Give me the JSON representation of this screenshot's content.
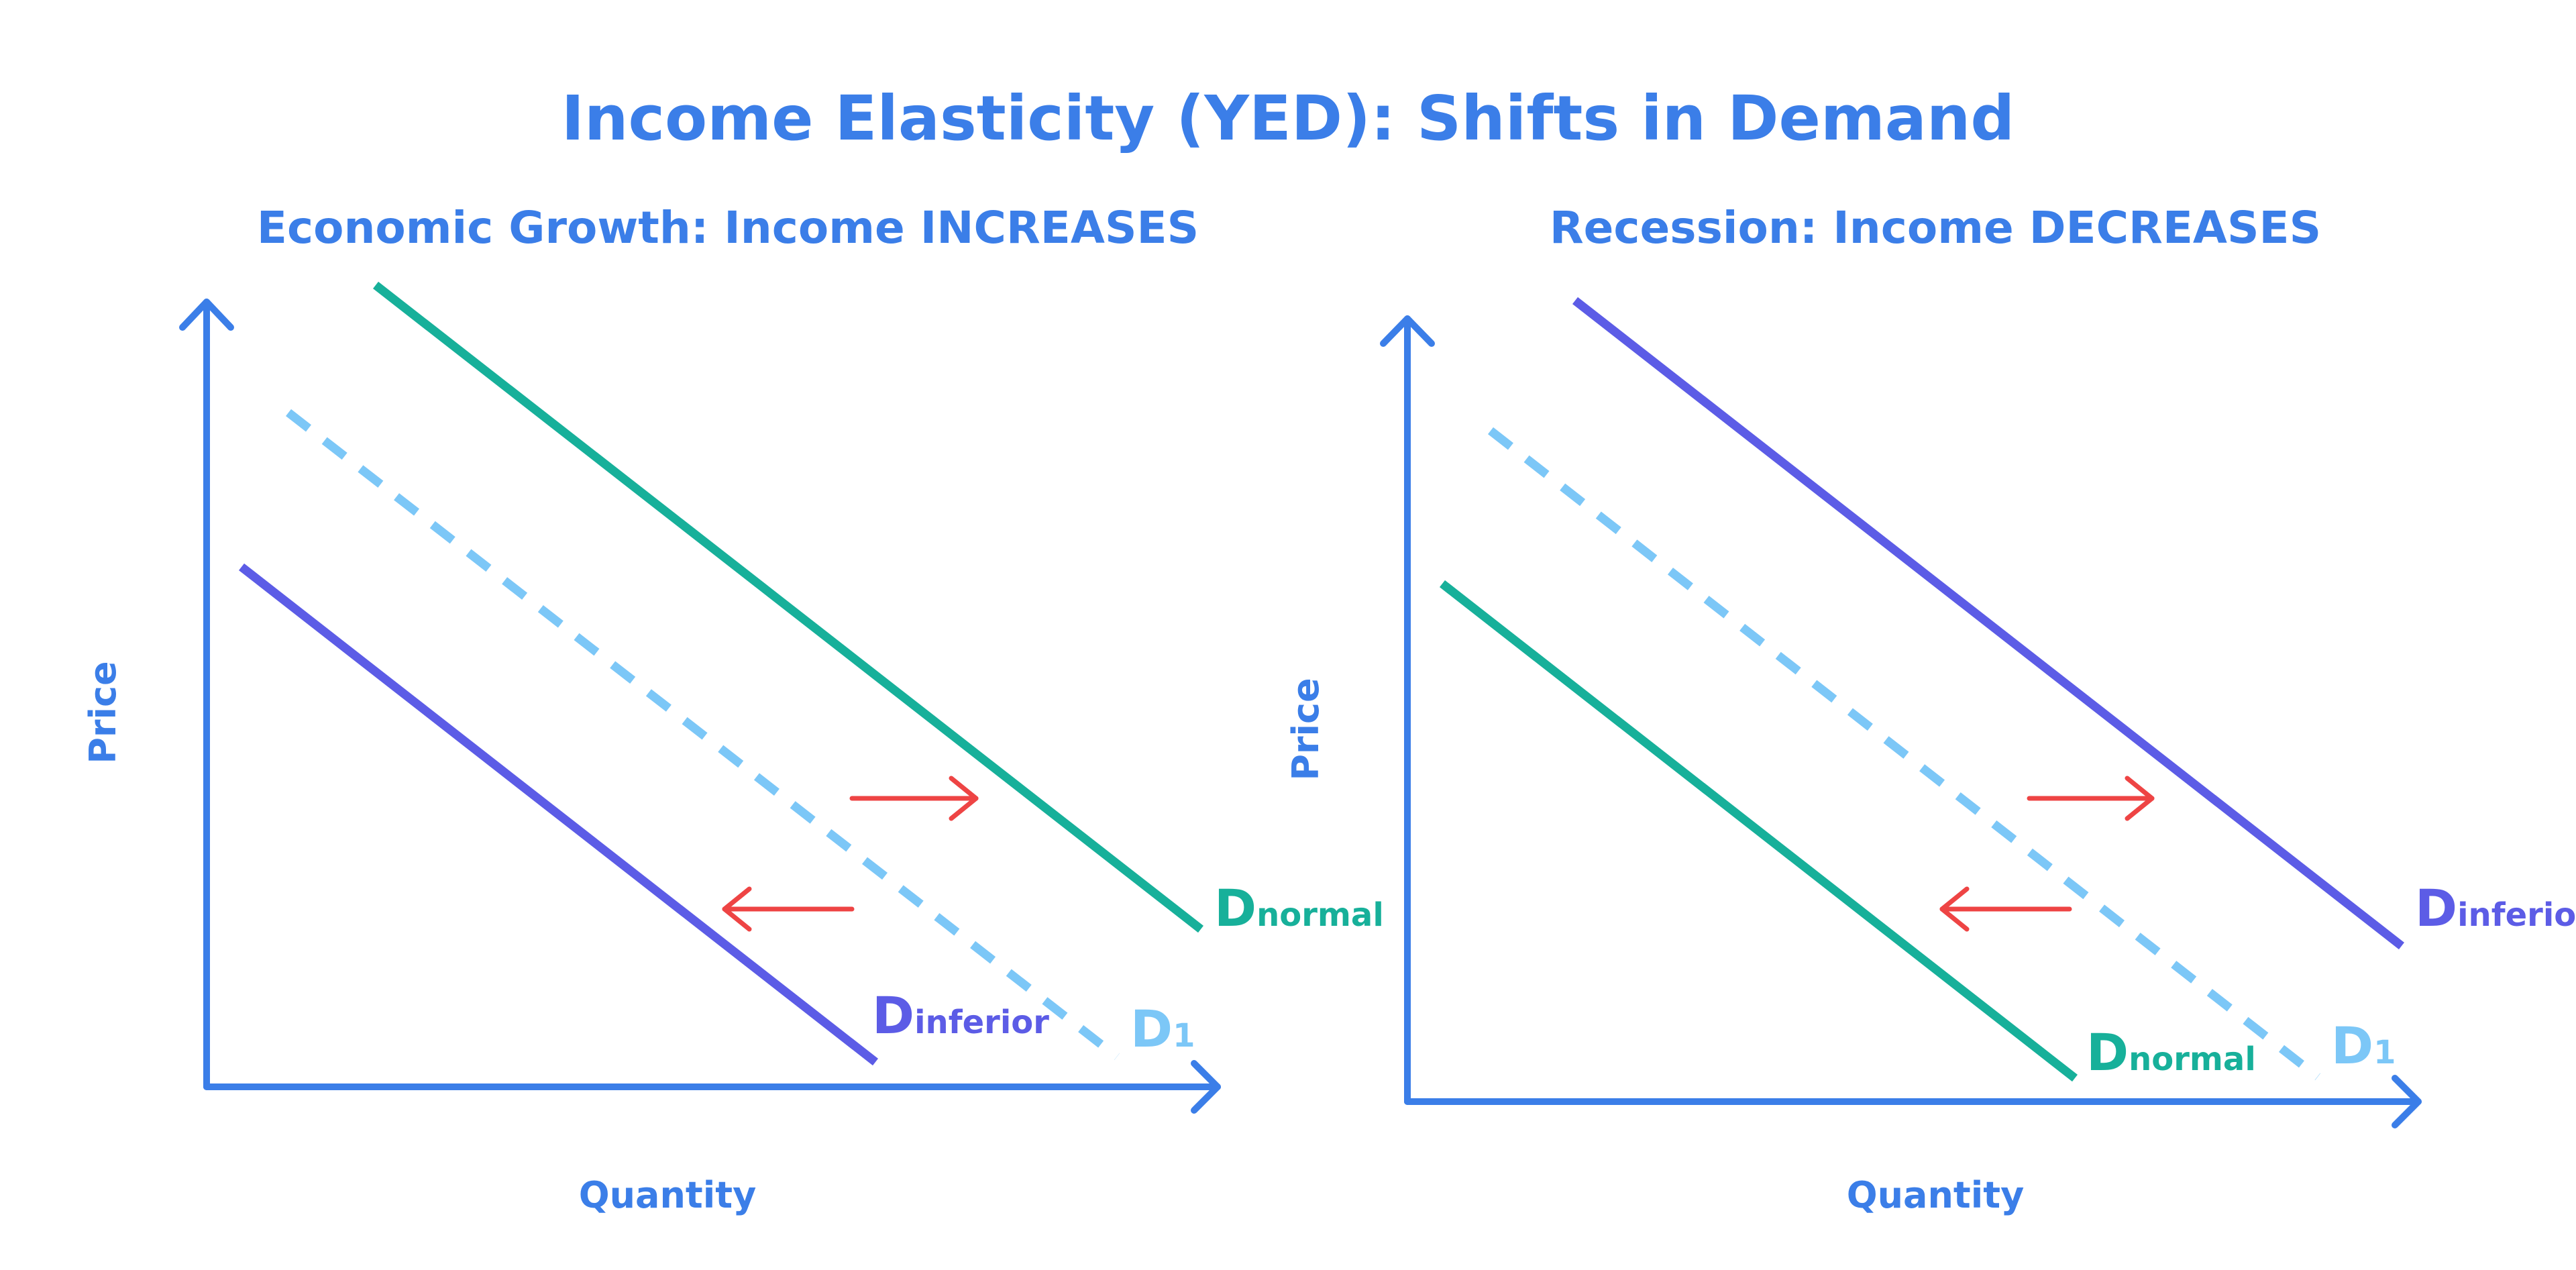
{
  "title": "Income Elasticity (YED): Shifts in Demand",
  "colors": {
    "axis": "#3b7ee8",
    "text": "#3b7ee8",
    "normal": "#17b09a",
    "inferior": "#5c5ce6",
    "original": "#7cc7f7",
    "arrow": "#ee4444"
  },
  "panels": [
    {
      "subtitle": "Economic Growth: Income INCREASES",
      "ylabel": "Price",
      "xlabel": "Quantity",
      "curves": [
        {
          "id": "normal",
          "main": "D",
          "sub": "normal"
        },
        {
          "id": "original",
          "main": "D",
          "sub": "1"
        },
        {
          "id": "inferior",
          "main": "D",
          "sub": "inferior"
        }
      ]
    },
    {
      "subtitle": "Recession: Income DECREASES",
      "ylabel": "Price",
      "xlabel": "Quantity",
      "curves": [
        {
          "id": "inferior",
          "main": "D",
          "sub": "inferior"
        },
        {
          "id": "original",
          "main": "D",
          "sub": "1"
        },
        {
          "id": "normal",
          "main": "D",
          "sub": "normal"
        }
      ]
    }
  ]
}
